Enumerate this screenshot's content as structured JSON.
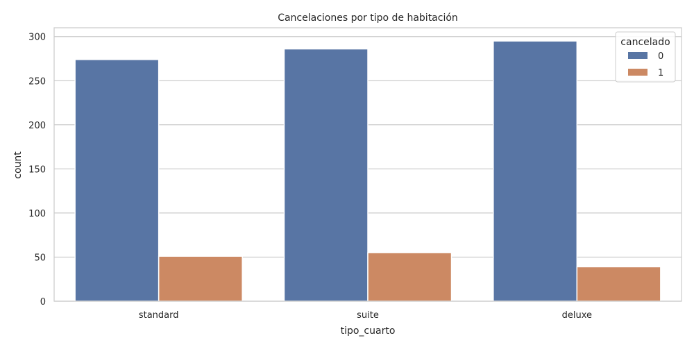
{
  "chart_data": {
    "type": "bar",
    "title": "Cancelaciones por tipo de habitación",
    "xlabel": "tipo_cuarto",
    "ylabel": "count",
    "categories": [
      "standard",
      "suite",
      "deluxe"
    ],
    "series": [
      {
        "name": "0",
        "values": [
          274,
          286,
          295
        ],
        "color": "#5875a4"
      },
      {
        "name": "1",
        "values": [
          51,
          55,
          39
        ],
        "color": "#cc8963"
      }
    ],
    "ylim": [
      0,
      310
    ],
    "yticks": [
      0,
      50,
      100,
      150,
      200,
      250,
      300
    ],
    "grid": true,
    "legend": {
      "title": "cancelado",
      "position": "top-right"
    }
  }
}
